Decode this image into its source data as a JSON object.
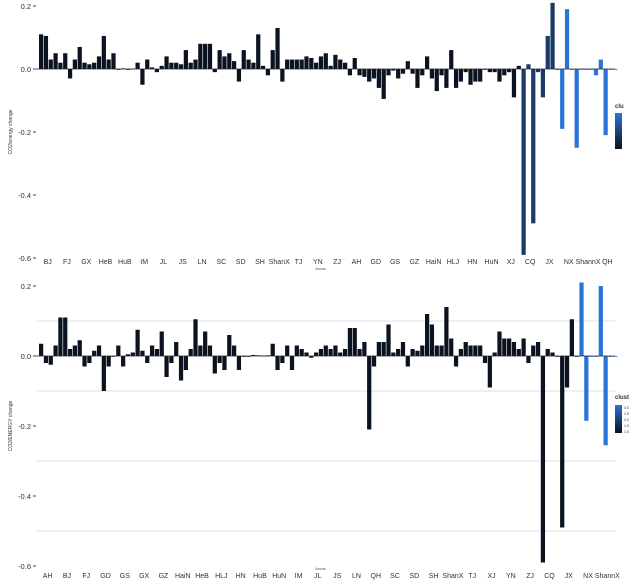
{
  "chart_data": [
    {
      "type": "bar",
      "title": "",
      "xlabel": "Areas",
      "ylabel": "CO2/energy change",
      "ylim": [
        -0.6,
        0.2
      ],
      "yticks": [
        0.2,
        0.0,
        -0.2,
        -0.4,
        -0.6
      ],
      "tick_labels": [
        "0.2",
        "0.0",
        "-0.2",
        "-0.4",
        "-0.6"
      ],
      "grid": false,
      "legend_position": "right",
      "legend_title": "clu",
      "colors": {
        "dark": "#0b1220",
        "mid": "#1b3a66",
        "light": "#2a74d8"
      },
      "categories": [
        "BJ",
        "FJ",
        "GX",
        "HeB",
        "HuB",
        "IM",
        "JL",
        "JS",
        "LN",
        "SC",
        "SD",
        "SH",
        "ShanX",
        "TJ",
        "YN",
        "ZJ",
        "AH",
        "GD",
        "GS",
        "GZ",
        "HaiN",
        "HLJ",
        "HN",
        "HuN",
        "XJ",
        "CQ",
        "JX",
        "NX",
        "ShannX",
        "QH"
      ],
      "series": [
        {
          "values": [
            [
              0.11,
              0.105,
              0.03,
              0.05
            ],
            [
              0.02,
              0.05,
              -0.03,
              0.03
            ],
            [
              0.07,
              0.02,
              0.015,
              0.02
            ],
            [
              0.04,
              0.105,
              0.03,
              0.05
            ],
            [
              0.0,
              0.002,
              0.0,
              0.001
            ],
            [
              0.02,
              -0.05,
              0.03,
              0.005
            ],
            [
              -0.01,
              0.01,
              0.04,
              0.02
            ],
            [
              0.02,
              0.015,
              0.06,
              0.02
            ],
            [
              0.03,
              0.08,
              0.08,
              0.08
            ],
            [
              -0.01,
              0.06,
              0.04,
              0.05
            ],
            [
              0.025,
              -0.04,
              0.06,
              0.03
            ],
            [
              0.02,
              0.11,
              0.01,
              -0.02
            ],
            [
              0.06,
              0.13,
              -0.04,
              0.03
            ],
            [
              0.03,
              0.03,
              0.03,
              0.04
            ],
            [
              0.035,
              0.02,
              0.04,
              0.05
            ],
            [
              0.01,
              0.045,
              0.03,
              0.02
            ],
            [
              -0.02,
              0.035,
              -0.02,
              -0.025
            ],
            [
              -0.04,
              -0.03,
              -0.06,
              -0.095
            ],
            [
              -0.02,
              -0.005,
              -0.03,
              -0.015
            ],
            [
              0.025,
              -0.015,
              -0.06,
              -0.02
            ],
            [
              0.04,
              -0.03,
              -0.07,
              -0.02
            ],
            [
              -0.06,
              0.06,
              -0.06,
              -0.04
            ],
            [
              -0.01,
              -0.05,
              -0.04,
              -0.04
            ],
            [
              0.0,
              -0.01,
              -0.01,
              -0.04
            ],
            [
              -0.02,
              -0.01,
              -0.09,
              0.01
            ],
            [
              -0.59,
              0.015,
              -0.49,
              -0.01
            ],
            [
              -0.09,
              0.105,
              0.21,
              0.0
            ],
            [
              -0.19,
              0.19,
              0.0,
              -0.25
            ],
            [
              0.0,
              0.0,
              0.0,
              -0.02
            ],
            [
              0.03,
              -0.21,
              0.0,
              0.0
            ]
          ]
        }
      ]
    },
    {
      "type": "bar",
      "title": "",
      "xlabel": "Areas",
      "ylabel": "CO2/ENERGY change",
      "ylim": [
        -0.6,
        0.2
      ],
      "yticks": [
        0.2,
        0.0,
        -0.2,
        -0.4,
        -0.6
      ],
      "tick_labels": [
        "0.2",
        "0.0",
        "-0.2",
        "-0.4",
        "-0.6"
      ],
      "grid": true,
      "legend_position": "right",
      "legend_title": "clust",
      "legend_ticks": [
        "3.0",
        "2.5",
        "2.0",
        "1.5",
        "1.0"
      ],
      "colors": {
        "dark": "#0b1220",
        "light": "#2a74d8"
      },
      "categories": [
        "AH",
        "BJ",
        "FJ",
        "GD",
        "GS",
        "GX",
        "GZ",
        "HaiN",
        "HeB",
        "HLJ",
        "HN",
        "HuB",
        "HuN",
        "IM",
        "JL",
        "JS",
        "LN",
        "QH",
        "SC",
        "SD",
        "SH",
        "ShanX",
        "TJ",
        "XJ",
        "YN",
        "ZJ",
        "CQ",
        "JX",
        "NX",
        "ShannX"
      ],
      "series": [
        {
          "values": [
            [
              0.035,
              -0.02,
              -0.025,
              0.03
            ],
            [
              0.11,
              0.11,
              0.02,
              0.03
            ],
            [
              0.045,
              -0.03,
              -0.02,
              0.015
            ],
            [
              0.03,
              -0.1,
              -0.03,
              0.0
            ],
            [
              0.03,
              -0.03,
              0.005,
              0.01
            ],
            [
              0.075,
              0.015,
              -0.02,
              0.03
            ],
            [
              0.02,
              0.07,
              -0.06,
              -0.02
            ],
            [
              0.04,
              -0.07,
              -0.04,
              0.02
            ],
            [
              0.105,
              0.03,
              0.07,
              0.03
            ],
            [
              -0.05,
              -0.02,
              -0.04,
              0.06
            ],
            [
              0.03,
              -0.04,
              0.0,
              0.0
            ],
            [
              0.003,
              0.002,
              0.001,
              0.002
            ],
            [
              0.035,
              -0.04,
              -0.02,
              0.03
            ],
            [
              -0.04,
              0.03,
              0.02,
              0.01
            ],
            [
              -0.005,
              0.01,
              0.02,
              0.03
            ],
            [
              0.02,
              0.03,
              0.01,
              0.02
            ],
            [
              0.08,
              0.08,
              0.02,
              0.04
            ],
            [
              -0.21,
              -0.03,
              0.04,
              0.04
            ],
            [
              0.09,
              0.01,
              0.02,
              0.04
            ],
            [
              -0.03,
              0.02,
              0.015,
              0.03
            ],
            [
              0.12,
              0.09,
              0.03,
              0.03
            ],
            [
              0.14,
              0.05,
              -0.03,
              0.02
            ],
            [
              0.04,
              0.03,
              0.03,
              0.03
            ],
            [
              -0.02,
              -0.09,
              0.01,
              0.07
            ],
            [
              0.05,
              0.05,
              0.04,
              0.02
            ],
            [
              0.05,
              -0.02,
              0.03,
              0.04
            ],
            [
              -0.59,
              0.02,
              0.01,
              0.0
            ],
            [
              -0.49,
              -0.09,
              0.105,
              0.0
            ],
            [
              0.21,
              -0.185,
              0.0,
              0.0
            ],
            [
              0.2,
              -0.255,
              0.0,
              0.0
            ]
          ]
        }
      ]
    }
  ]
}
